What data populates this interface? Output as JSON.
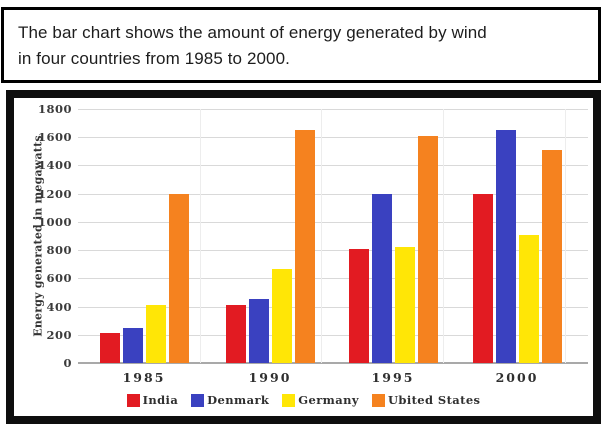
{
  "caption": {
    "line1": "The bar chart shows the amount of energy generated by wind",
    "line2": "in four countries from 1985 to 2000."
  },
  "chart_data": {
    "type": "bar",
    "title": "",
    "xlabel": "",
    "ylabel": "Energy generated in megawatts",
    "categories": [
      "1985",
      "1990",
      "1995",
      "2000"
    ],
    "series": [
      {
        "name": "India",
        "color": "#E21B22",
        "values": [
          210,
          410,
          810,
          1200
        ]
      },
      {
        "name": "Denmark",
        "color": "#3A41C0",
        "values": [
          250,
          455,
          1200,
          1650
        ]
      },
      {
        "name": "Germany",
        "color": "#FFE606",
        "values": [
          410,
          665,
          820,
          910
        ]
      },
      {
        "name": "Ubited States",
        "color": "#F5821F",
        "values": [
          1200,
          1650,
          1610,
          1510
        ]
      }
    ],
    "ylim": [
      0,
      1800
    ],
    "yticks": [
      0,
      200,
      400,
      600,
      800,
      1000,
      1200,
      1400,
      1600,
      1800
    ],
    "grid": true,
    "legend_position": "bottom"
  }
}
